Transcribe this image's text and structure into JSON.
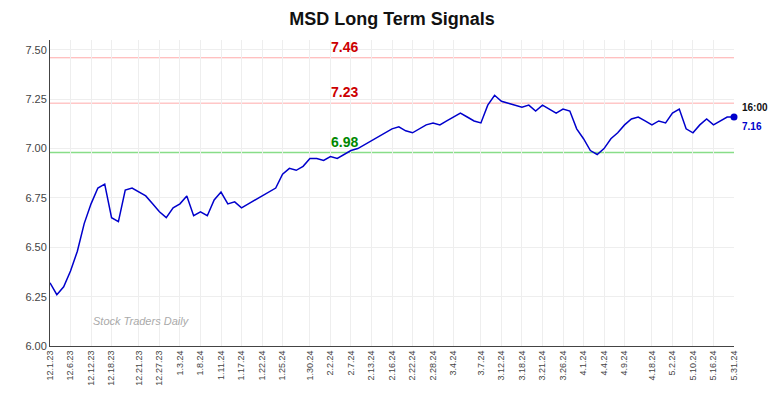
{
  "chart_data": {
    "type": "line",
    "title": "MSD Long Term Signals",
    "color": "#0000cc",
    "grid": true,
    "categories": [
      "12.1.23",
      null,
      null,
      "12.6.23",
      null,
      null,
      "12.12.23",
      null,
      null,
      "12.18.23",
      null,
      null,
      null,
      "12.21.23",
      null,
      null,
      "12.27.23",
      null,
      null,
      "1.3.24",
      null,
      null,
      "1.8.24",
      null,
      null,
      "1.11.24",
      null,
      null,
      "1.17.24",
      null,
      null,
      "1.22.24",
      null,
      null,
      "1.25.24",
      null,
      null,
      null,
      "1.30.24",
      null,
      null,
      "2.2.24",
      null,
      null,
      "2.7.24",
      null,
      null,
      "2.13.24",
      null,
      null,
      "2.16.24",
      null,
      null,
      "2.22.24",
      null,
      null,
      "2.28.24",
      null,
      null,
      "3.4.24",
      null,
      null,
      null,
      "3.7.24",
      null,
      null,
      "3.12.24",
      null,
      null,
      "3.18.24",
      null,
      null,
      "3.21.24",
      null,
      null,
      "3.26.24",
      null,
      null,
      "4.1.24",
      null,
      null,
      "4.4.24",
      null,
      null,
      "4.9.24",
      null,
      null,
      null,
      "4.18.24",
      null,
      null,
      "5.2.24",
      null,
      null,
      "5.10.24",
      null,
      null,
      "5.16.24",
      null,
      null,
      "5.31.24"
    ],
    "values": [
      6.32,
      6.26,
      6.3,
      6.38,
      6.48,
      6.62,
      6.72,
      6.8,
      6.82,
      6.65,
      6.63,
      6.79,
      6.8,
      6.78,
      6.76,
      6.72,
      6.68,
      6.65,
      6.7,
      6.72,
      6.76,
      6.66,
      6.68,
      6.66,
      6.74,
      6.78,
      6.72,
      6.73,
      6.7,
      6.72,
      6.74,
      6.76,
      6.78,
      6.8,
      6.87,
      6.9,
      6.89,
      6.91,
      6.95,
      6.95,
      6.94,
      6.96,
      6.95,
      6.97,
      6.99,
      7.0,
      7.02,
      7.04,
      7.06,
      7.08,
      7.1,
      7.11,
      7.09,
      7.08,
      7.1,
      7.12,
      7.13,
      7.12,
      7.14,
      7.16,
      7.18,
      7.16,
      7.14,
      7.13,
      7.22,
      7.27,
      7.24,
      7.23,
      7.22,
      7.21,
      7.22,
      7.19,
      7.22,
      7.2,
      7.18,
      7.2,
      7.19,
      7.1,
      7.05,
      6.99,
      6.97,
      7.0,
      7.05,
      7.08,
      7.12,
      7.15,
      7.16,
      7.14,
      7.12,
      7.14,
      7.13,
      7.18,
      7.2,
      7.1,
      7.08,
      7.12,
      7.15,
      7.12,
      7.14,
      7.16,
      7.16
    ],
    "ylim": [
      6.0,
      7.55
    ],
    "yticks": [
      {
        "value": 6.0,
        "label": "6.00"
      },
      {
        "value": 6.25,
        "label": "6.25"
      },
      {
        "value": 6.5,
        "label": "6.50"
      },
      {
        "value": 6.75,
        "label": "6.75"
      },
      {
        "value": 7.0,
        "label": "7.00"
      },
      {
        "value": 7.25,
        "label": "7.25"
      },
      {
        "value": 7.5,
        "label": "7.50"
      }
    ],
    "reference_lines": [
      {
        "value": 7.46,
        "label": "7.46",
        "color": "#ffaaaa",
        "label_color": "#cc0000"
      },
      {
        "value": 7.23,
        "label": "7.23",
        "color": "#ffaaaa",
        "label_color": "#cc0000"
      },
      {
        "value": 6.98,
        "label": "6.98",
        "color": "#88dd88",
        "label_color": "#008800"
      }
    ],
    "end_marker": {
      "label": "16:00",
      "value_label": "7.16",
      "color": "#0000cc"
    },
    "watermark": {
      "text": "Stock Traders Daily",
      "color": "#aaaaaa"
    }
  }
}
